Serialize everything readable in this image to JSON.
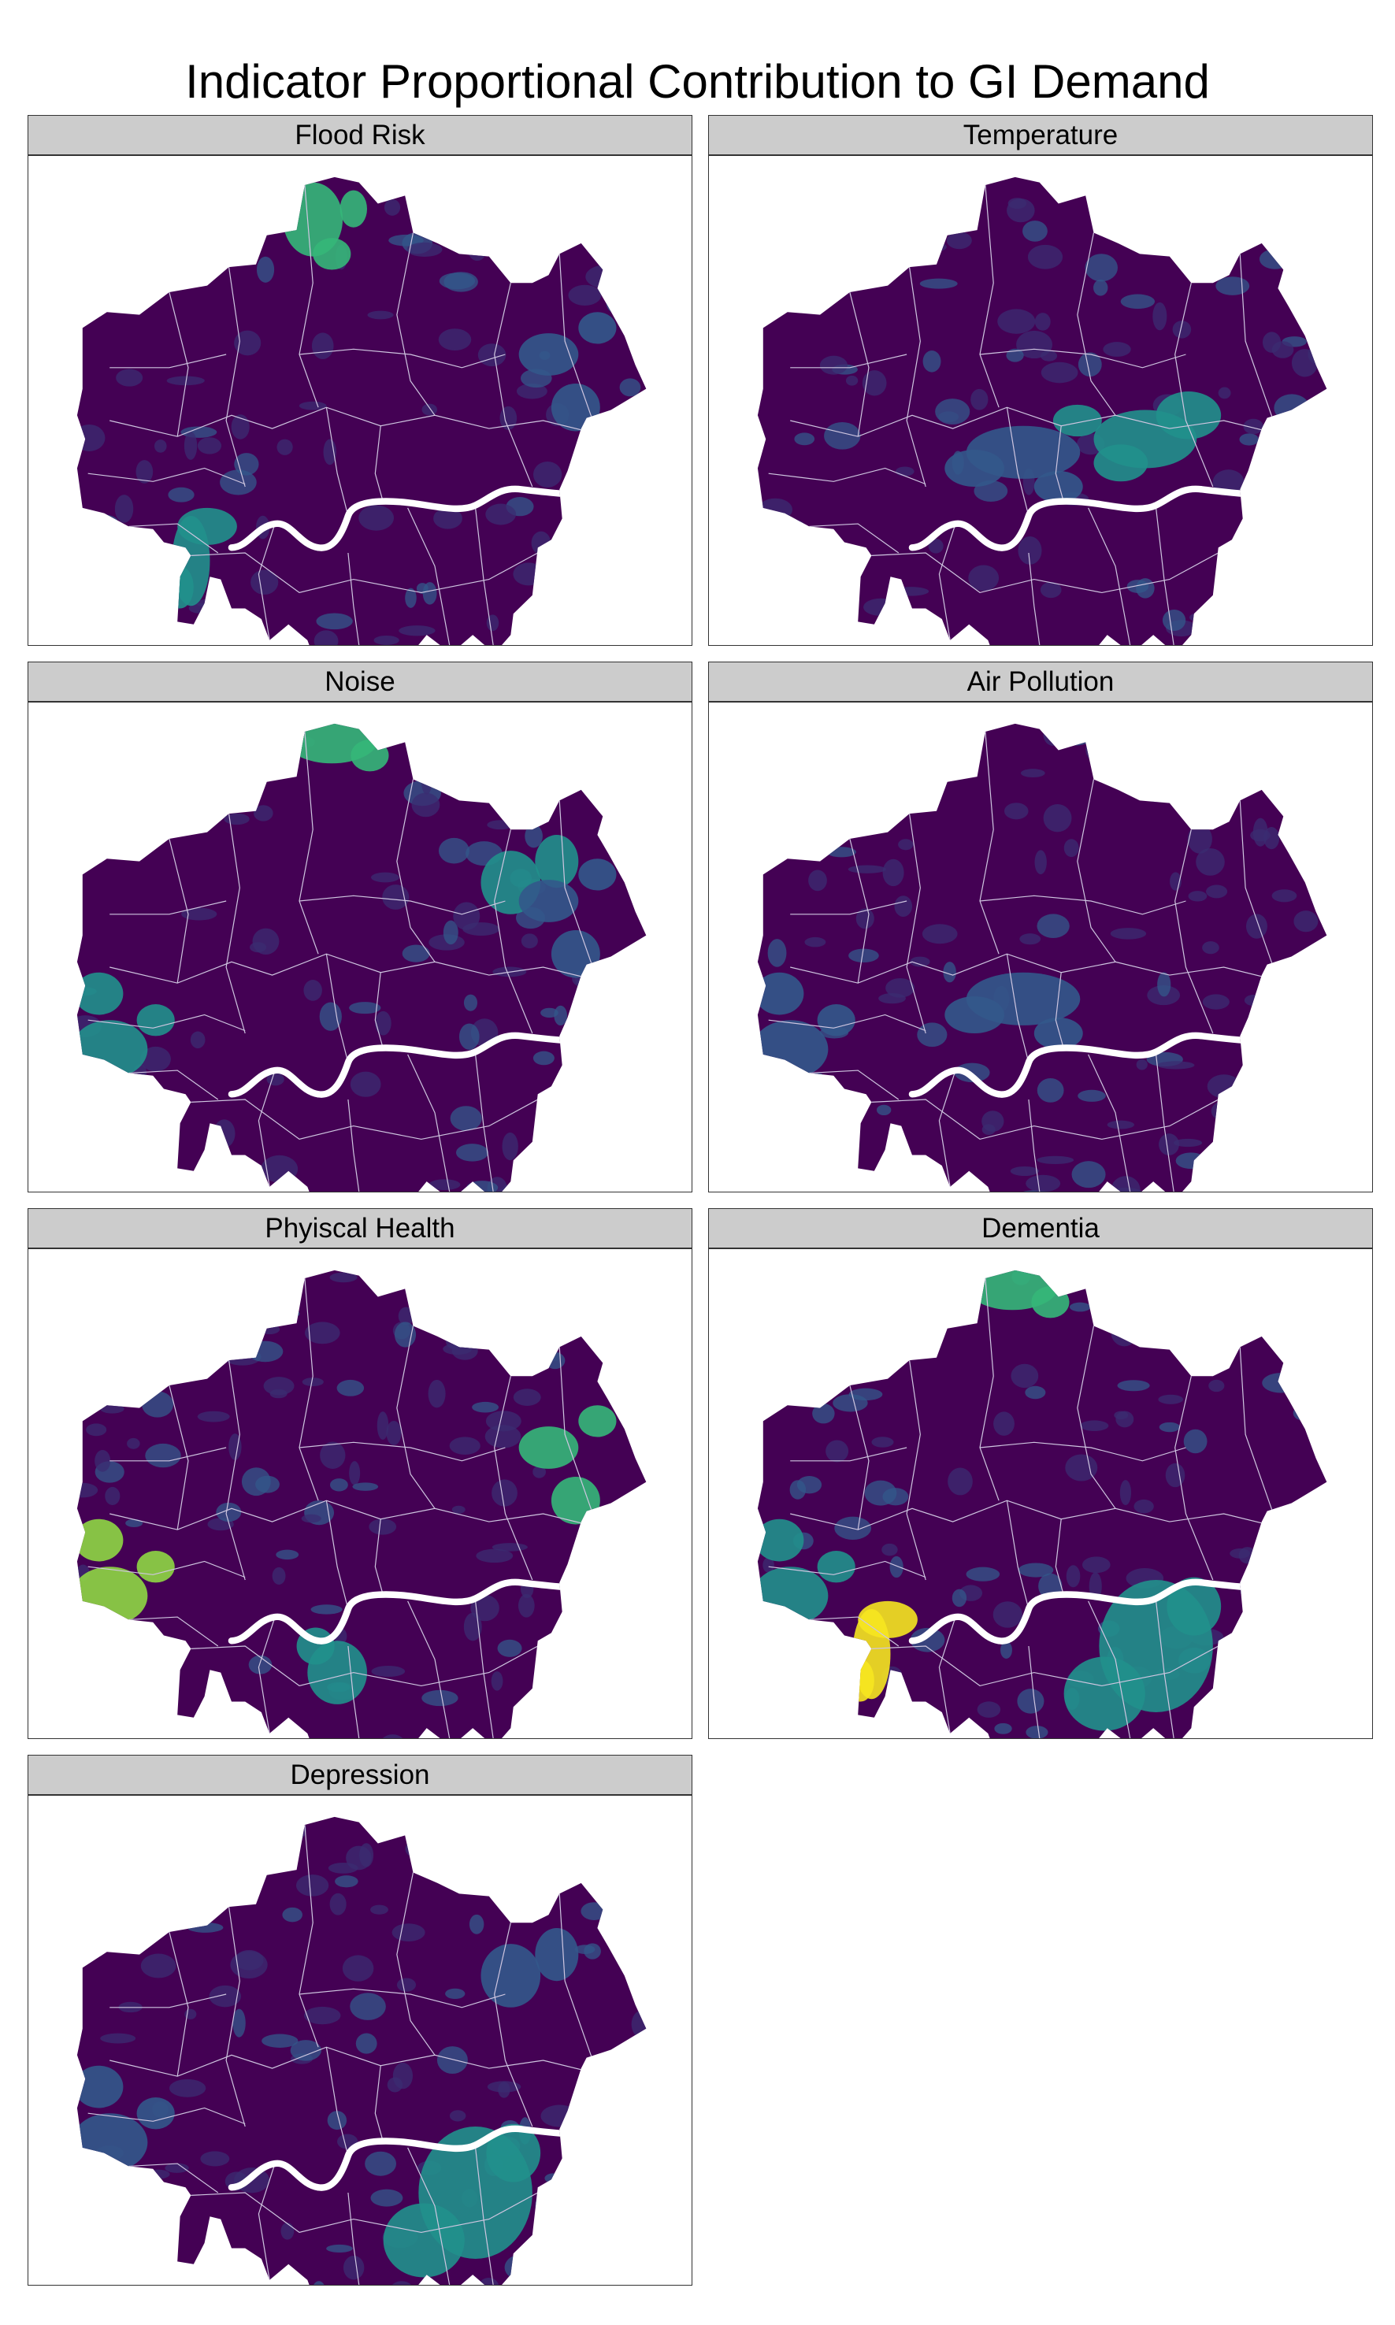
{
  "title": "Indicator Proportional Contribution to GI Demand",
  "palette": {
    "background": "#440154",
    "low": "#3b2c72",
    "mid_low": "#33588b",
    "mid": "#21908c",
    "mid_high": "#35b779",
    "high": "#8fd744",
    "max": "#f6e620",
    "river": "#ffffff",
    "boundaries": "#cfc6e0"
  },
  "panels": [
    {
      "label": "Flood Risk",
      "hotspots": [
        {
          "color": "mid_high",
          "shape": "north-centre"
        },
        {
          "color": "mid",
          "shape": "south-west"
        },
        {
          "color": "mid_low",
          "shape": "east"
        }
      ]
    },
    {
      "label": "Temperature",
      "hotspots": [
        {
          "color": "mid",
          "shape": "inner-east"
        },
        {
          "color": "mid_low",
          "shape": "centre"
        }
      ]
    },
    {
      "label": "Noise",
      "hotspots": [
        {
          "color": "mid",
          "shape": "west"
        },
        {
          "color": "mid_high",
          "shape": "north"
        },
        {
          "color": "mid",
          "shape": "north-east"
        },
        {
          "color": "mid_low",
          "shape": "east"
        }
      ]
    },
    {
      "label": "Air Pollution",
      "hotspots": [
        {
          "color": "mid_low",
          "shape": "centre"
        },
        {
          "color": "mid_low",
          "shape": "west"
        }
      ]
    },
    {
      "label": "Phyiscal Health",
      "hotspots": [
        {
          "color": "high",
          "shape": "west"
        },
        {
          "color": "mid_high",
          "shape": "east"
        },
        {
          "color": "mid",
          "shape": "south-centre"
        }
      ]
    },
    {
      "label": "Dementia",
      "hotspots": [
        {
          "color": "mid",
          "shape": "south-east"
        },
        {
          "color": "max",
          "shape": "south-west"
        },
        {
          "color": "mid_high",
          "shape": "north"
        },
        {
          "color": "mid",
          "shape": "west"
        }
      ]
    },
    {
      "label": "Depression",
      "hotspots": [
        {
          "color": "mid",
          "shape": "south-east"
        },
        {
          "color": "mid_low",
          "shape": "west"
        },
        {
          "color": "mid_low",
          "shape": "north-east"
        }
      ]
    }
  ]
}
